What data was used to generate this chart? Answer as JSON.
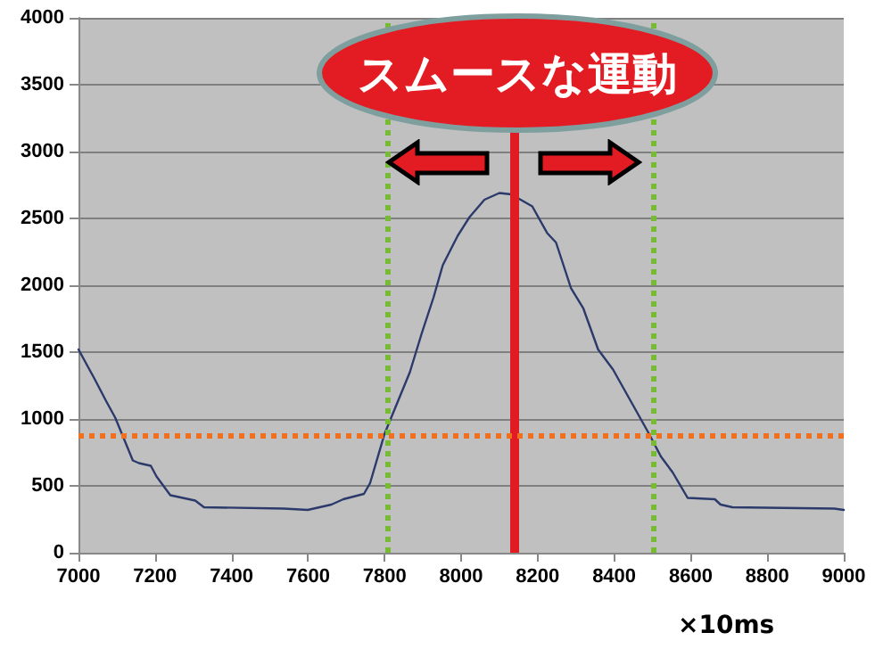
{
  "chart_data": {
    "type": "line",
    "annotations": [
      "スムースな運動"
    ],
    "xlabel": "×10ms",
    "series": [
      {
        "color": "#2b3a6b",
        "x": [
          7000,
          7042,
          7073,
          7096,
          7142,
          7158,
          7189,
          7204,
          7240,
          7305,
          7328,
          7537,
          7599,
          7661,
          7692,
          7746,
          7762,
          7800,
          7866,
          7897,
          7928,
          7952,
          7991,
          8022,
          8061,
          8100,
          8131,
          8186,
          8225,
          8248,
          8287,
          8319,
          8358,
          8397,
          8444,
          8491,
          8522,
          8553,
          8592,
          8663,
          8678,
          8709,
          8975,
          9000
        ],
        "values": [
          1520,
          1300,
          1130,
          1010,
          690,
          670,
          650,
          570,
          430,
          390,
          340,
          330,
          320,
          360,
          400,
          440,
          520,
          890,
          1350,
          1640,
          1910,
          2150,
          2370,
          2510,
          2640,
          2690,
          2680,
          2590,
          2390,
          2320,
          1980,
          1830,
          1520,
          1370,
          1130,
          890,
          720,
          600,
          410,
          400,
          360,
          340,
          330,
          320
        ]
      }
    ],
    "xlim": [
      7000,
      9000
    ],
    "xticks": [
      7000,
      7200,
      7400,
      7600,
      7800,
      8000,
      8200,
      8400,
      8600,
      8800,
      9000
    ],
    "ylim": [
      0,
      4000
    ],
    "yticks": [
      0,
      500,
      1000,
      1500,
      2000,
      2500,
      3000,
      3500,
      4000
    ],
    "grid": "y",
    "marker": "none",
    "line_style": "solid",
    "ref_lines": [
      {
        "axis": "x",
        "value": 7810,
        "color": "#77bb33",
        "line_style": "dotted"
      },
      {
        "axis": "x",
        "value": 8140,
        "color": "#e01b22",
        "line_style": "solid"
      },
      {
        "axis": "x",
        "value": 8500,
        "color": "#77bb33",
        "line_style": "dotted"
      },
      {
        "axis": "y",
        "value": 880,
        "color": "#f07020",
        "line_style": "dotted"
      }
    ]
  }
}
